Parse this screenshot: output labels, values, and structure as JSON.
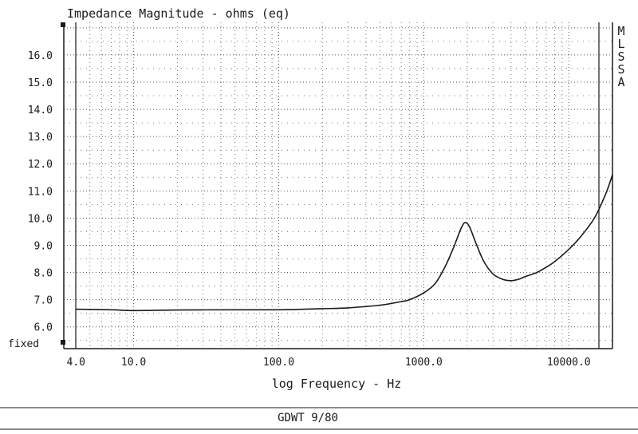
{
  "chart_data": {
    "type": "line",
    "title": "Impedance Magnitude - ohms (eq)",
    "xlabel": "log Frequency - Hz",
    "ylabel": "",
    "x_scale": "log",
    "xlim": [
      3.3,
      20000
    ],
    "ylim": [
      5.2,
      17.2
    ],
    "x_ticks": [
      {
        "value": 4,
        "label": "4.0"
      },
      {
        "value": 10,
        "label": "10.0"
      },
      {
        "value": 100,
        "label": "100.0"
      },
      {
        "value": 1000,
        "label": "1000.0"
      },
      {
        "value": 10000,
        "label": "10000.0"
      }
    ],
    "y_ticks": [
      {
        "value": 6,
        "label": "6.0"
      },
      {
        "value": 7,
        "label": "7.0"
      },
      {
        "value": 8,
        "label": "8.0"
      },
      {
        "value": 9,
        "label": "9.0"
      },
      {
        "value": 10,
        "label": "10.0"
      },
      {
        "value": 11,
        "label": "11.0"
      },
      {
        "value": 12,
        "label": "12.0"
      },
      {
        "value": 13,
        "label": "13.0"
      },
      {
        "value": 14,
        "label": "14.0"
      },
      {
        "value": 15,
        "label": "15.0"
      },
      {
        "value": 16,
        "label": "16.0"
      }
    ],
    "grid": true,
    "series": [
      {
        "x": [
          4,
          7,
          10,
          20,
          50,
          100,
          200,
          300,
          500,
          700,
          800,
          1000,
          1200,
          1400,
          1600,
          1800,
          1900,
          2000,
          2100,
          2300,
          2600,
          3000,
          3500,
          4000,
          4500,
          5000,
          6000,
          7000,
          8000,
          10000,
          12000,
          15000,
          18000,
          20000
        ],
        "y": [
          6.65,
          6.63,
          6.6,
          6.62,
          6.63,
          6.63,
          6.67,
          6.7,
          6.8,
          6.93,
          7.0,
          7.25,
          7.6,
          8.2,
          8.9,
          9.6,
          9.82,
          9.8,
          9.6,
          9.05,
          8.4,
          7.95,
          7.75,
          7.7,
          7.75,
          7.85,
          8.0,
          8.2,
          8.4,
          8.85,
          9.3,
          10.0,
          10.9,
          11.6
        ]
      }
    ],
    "annotations": {
      "side_label": "MLSSA",
      "fixed_label": "fixed",
      "caption": "GDWT 9/80"
    },
    "colors": {
      "line": "#1a1a1a",
      "grid": "#555555"
    }
  }
}
